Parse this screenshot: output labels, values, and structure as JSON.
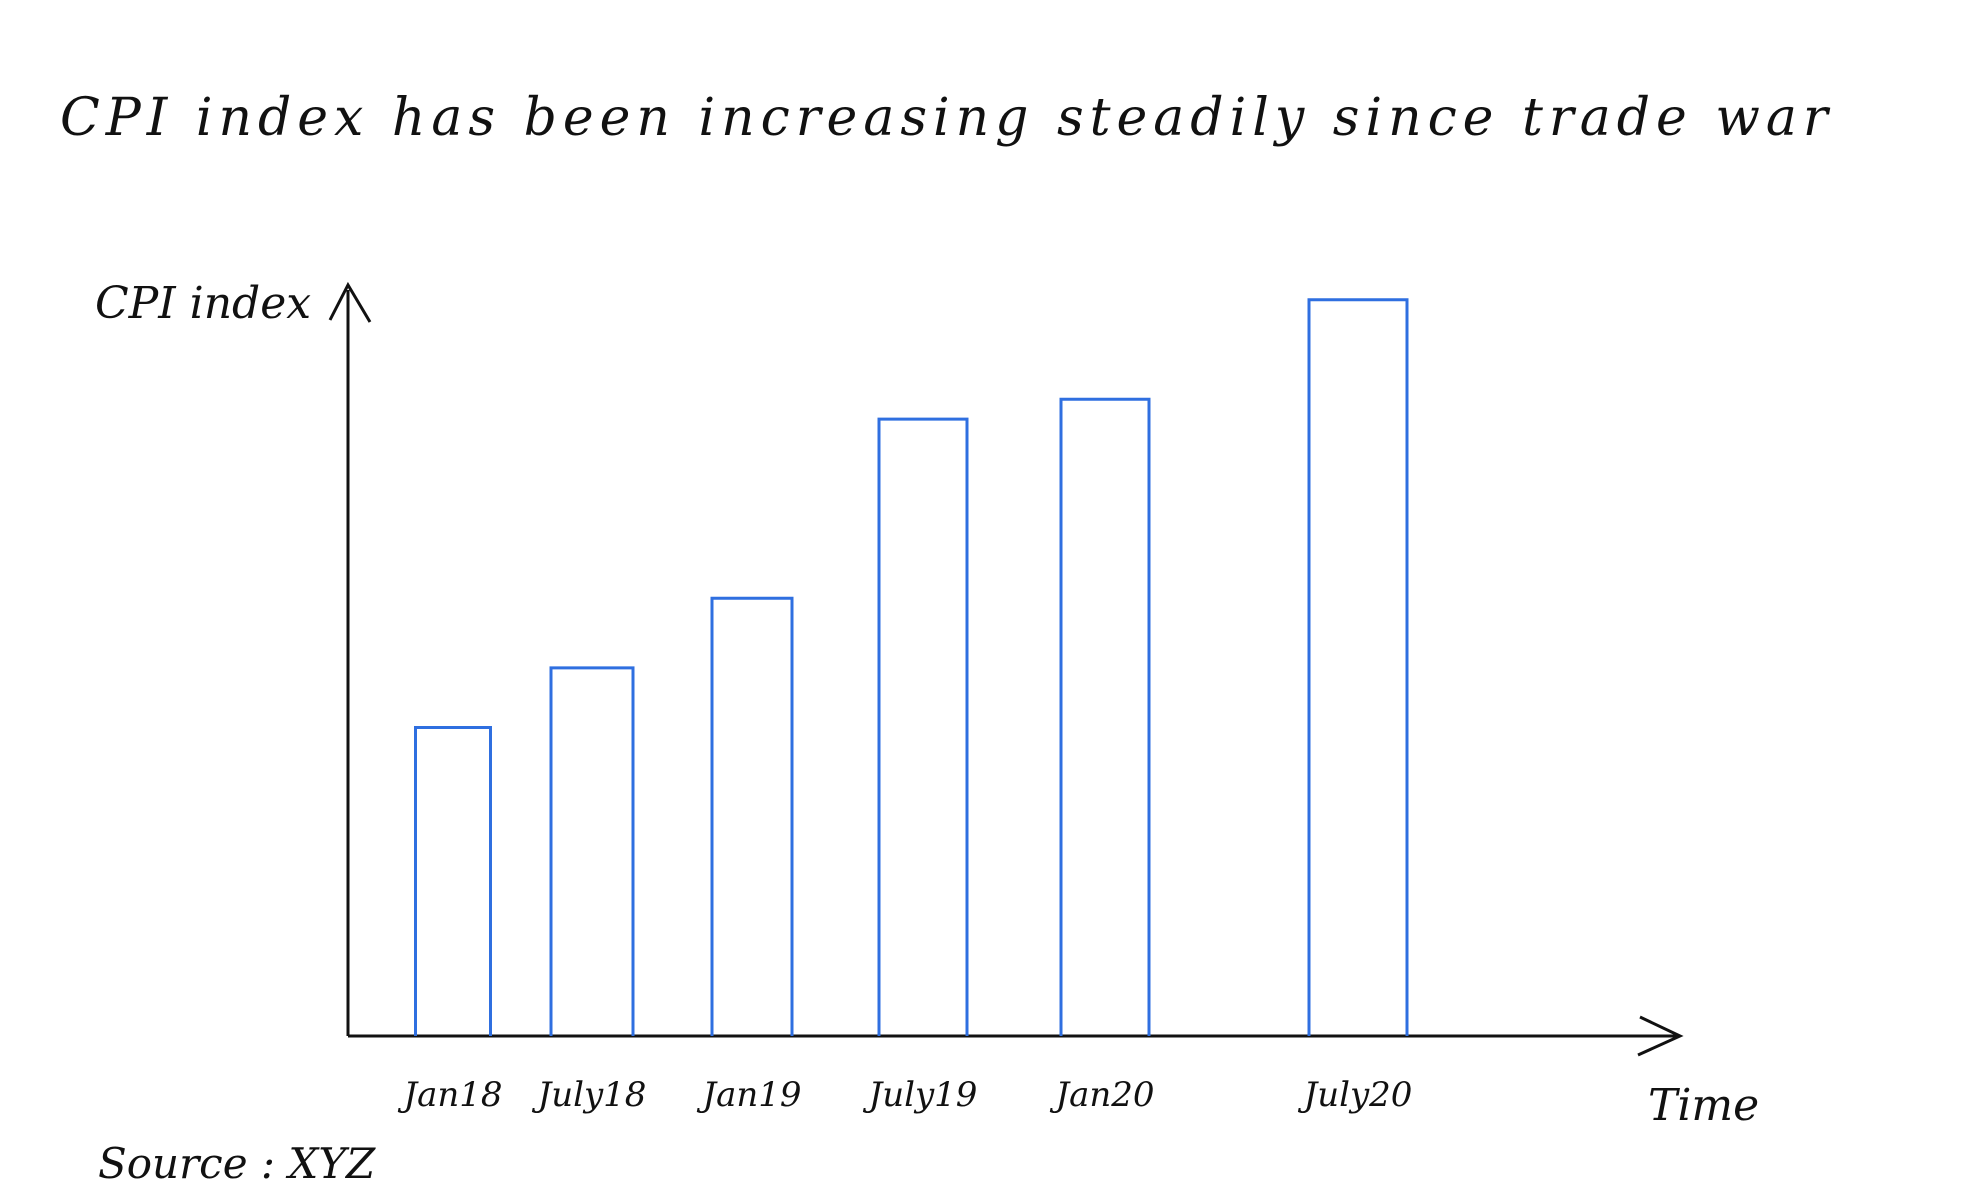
{
  "chart_data": {
    "type": "bar",
    "title": "CPI index has been increasing steadily since trade war",
    "ylabel": "CPI index",
    "xlabel": "Time",
    "categories": [
      "Jan18",
      "July18",
      "Jan19",
      "July19",
      "Jan20",
      "July20"
    ],
    "values": [
      31,
      37,
      44,
      62,
      64,
      74
    ],
    "ylim": [
      0,
      80
    ],
    "grid": false,
    "legend": "none",
    "bar_fill": "none",
    "bar_stroke": "#2f6fe0",
    "axis_color": "#111111",
    "source": "Source : XYZ"
  }
}
